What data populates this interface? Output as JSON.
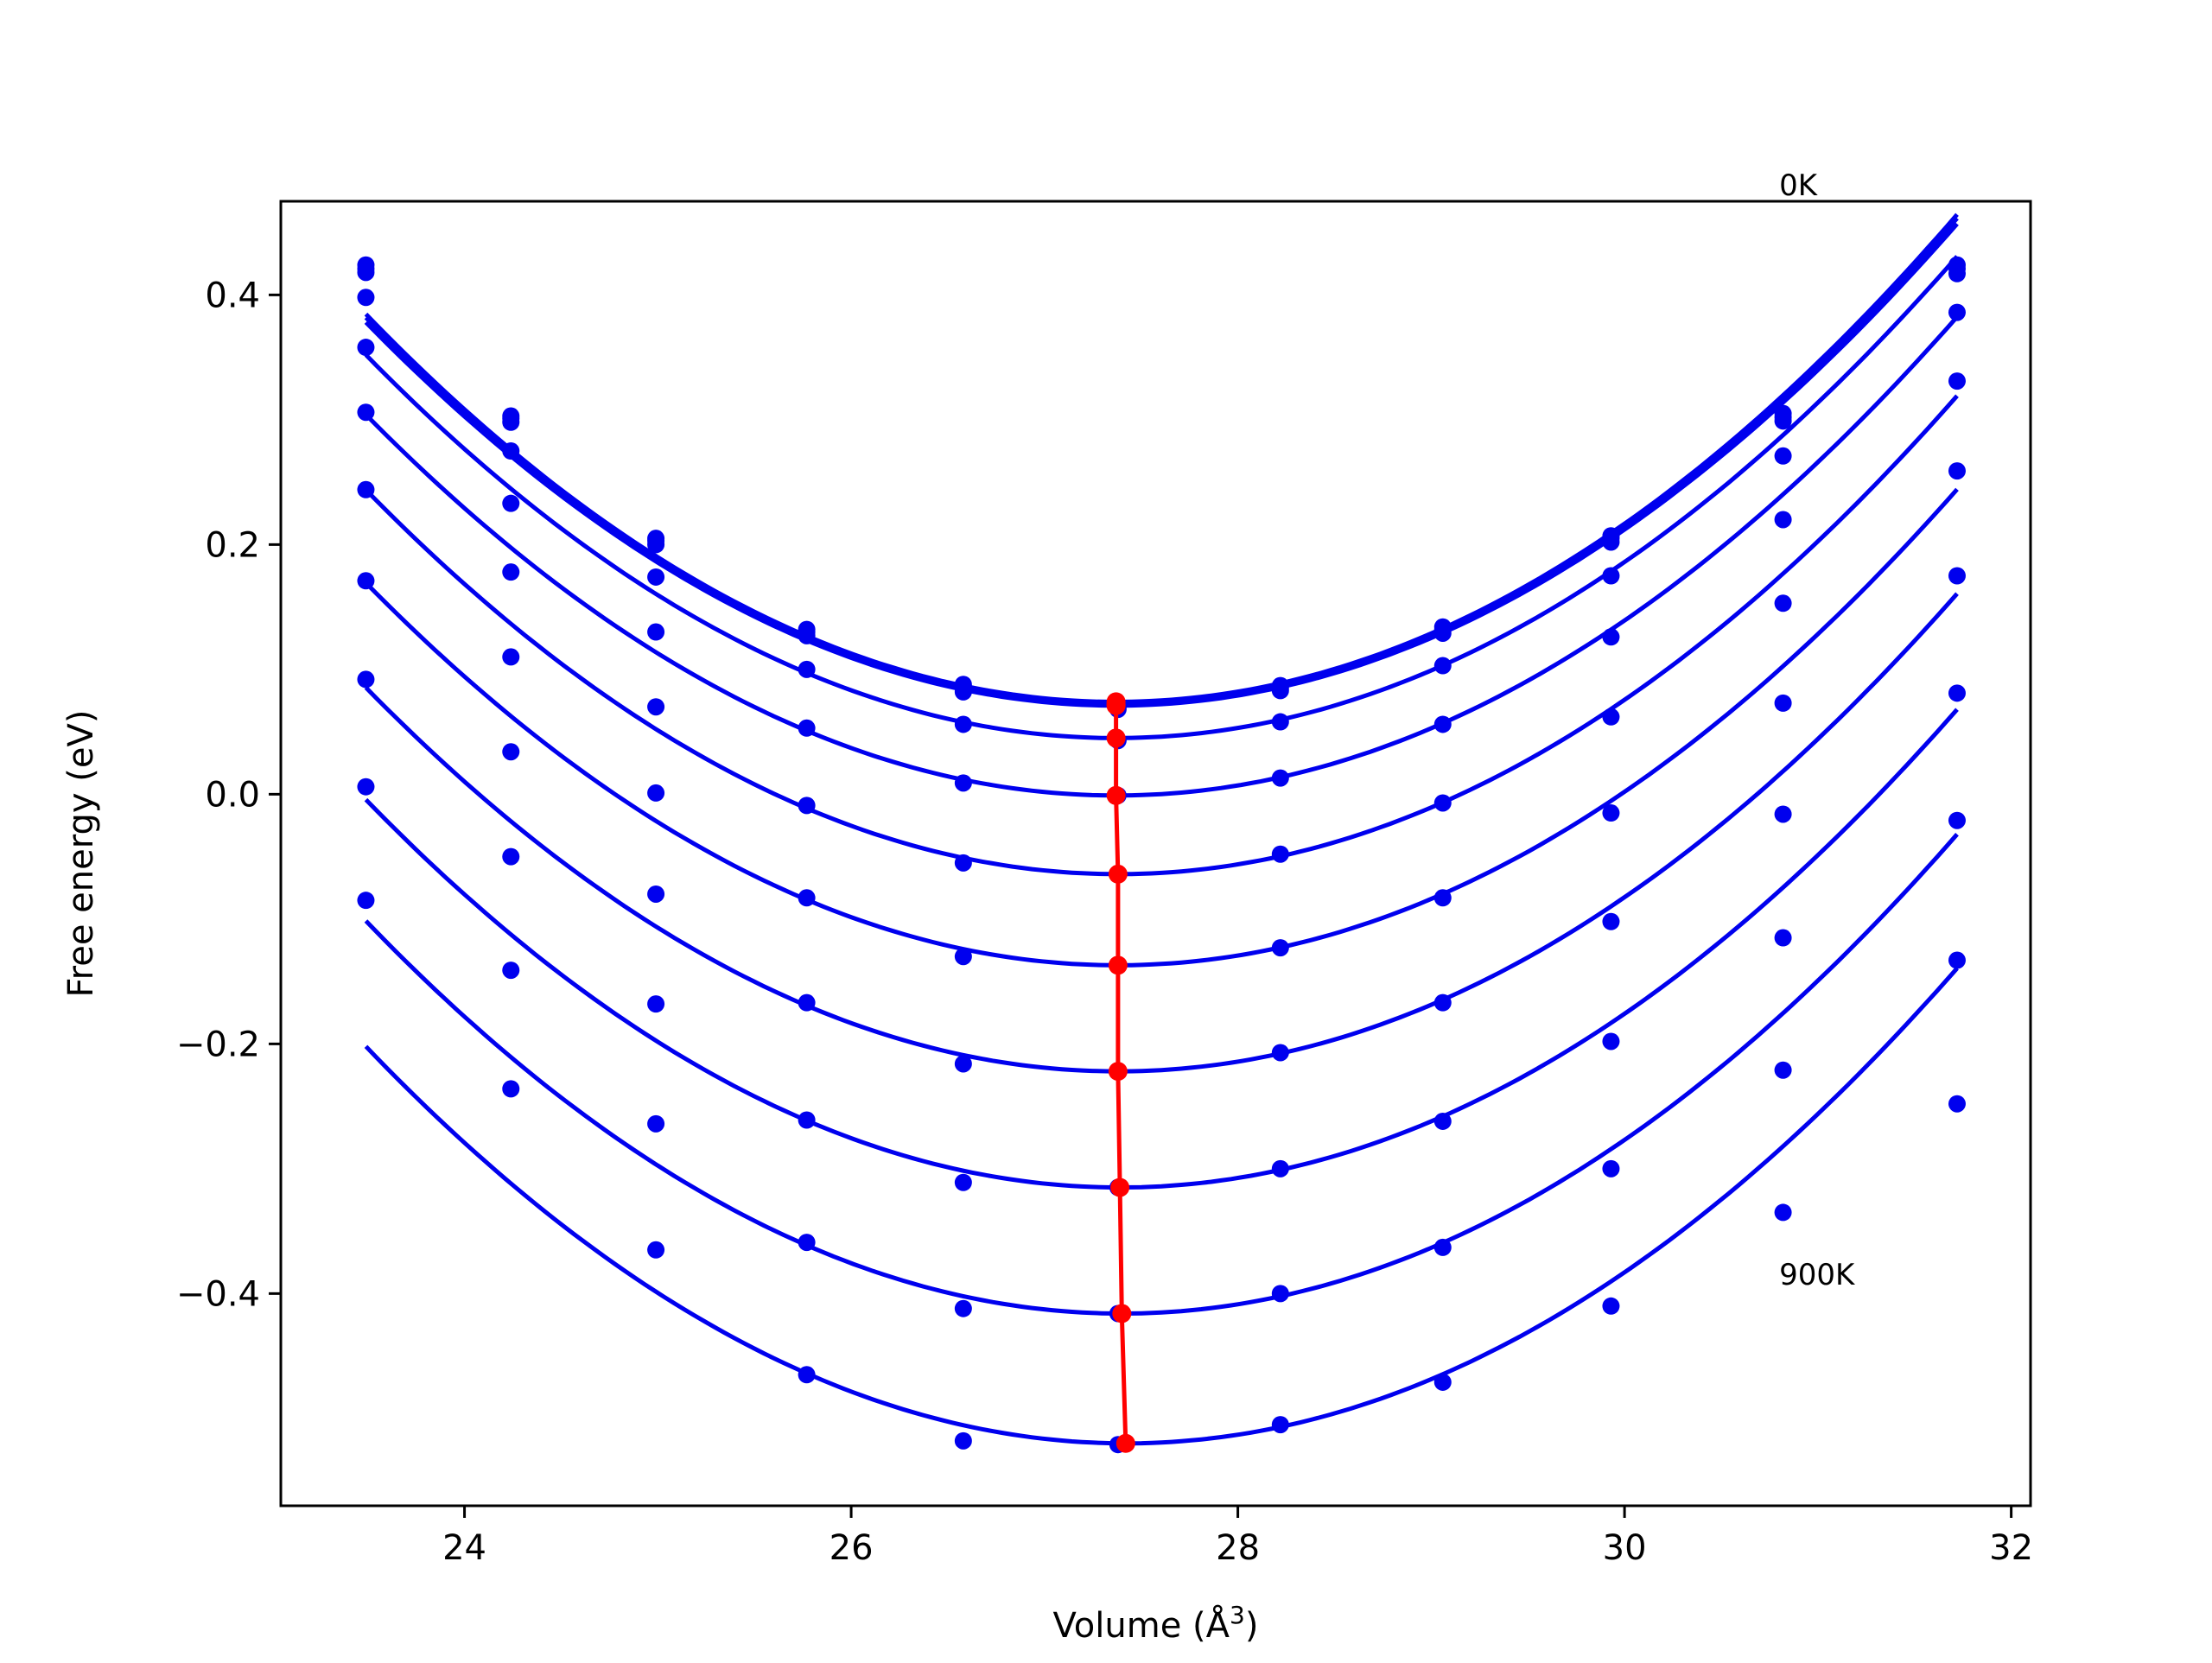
{
  "chart_data": {
    "type": "line",
    "title": "",
    "xlabel": "Volume (Å",
    "xlabel_sup": "3",
    "xlabel_close": ")",
    "ylabel": "Free energy (eV)",
    "xlim": [
      23.05,
      32.1
    ],
    "ylim": [
      -0.57,
      0.475
    ],
    "xticks": [
      24,
      26,
      28,
      30,
      32
    ],
    "xtick_labels": [
      "24",
      "26",
      "28",
      "30",
      "32"
    ],
    "yticks": [
      0.4,
      0.2,
      0.0,
      -0.2,
      -0.4
    ],
    "ytick_labels": [
      "0.4",
      "0.2",
      "0.0",
      "−0.2",
      "−0.4"
    ],
    "grid": false,
    "legend": "none",
    "annotations": [
      {
        "text": "0K",
        "x": 30.8,
        "y": 0.48
      },
      {
        "text": "900K",
        "x": 30.8,
        "y": -0.393
      }
    ],
    "volumes": [
      23.49,
      24.24,
      24.99,
      25.77,
      26.58,
      27.38,
      28.22,
      29.06,
      29.93,
      30.82,
      31.72
    ],
    "series": [
      {
        "min_volume": 27.37,
        "min_energy": 0.074,
        "points": [
          0.424,
          0.303,
          0.205,
          0.132,
          0.088,
          0.071,
          0.087,
          0.134,
          0.207,
          0.305,
          0.424
        ]
      },
      {
        "min_volume": 27.37,
        "min_energy": 0.072,
        "points": [
          0.421,
          0.301,
          0.203,
          0.13,
          0.086,
          0.07,
          0.085,
          0.132,
          0.205,
          0.302,
          0.421
        ]
      },
      {
        "min_volume": 27.37,
        "min_energy": 0.071,
        "points": [
          0.418,
          0.298,
          0.2,
          0.127,
          0.082,
          0.068,
          0.083,
          0.129,
          0.202,
          0.299,
          0.417
        ]
      },
      {
        "min_volume": 27.37,
        "min_energy": 0.045,
        "points": [
          0.398,
          0.275,
          0.174,
          0.1,
          0.056,
          0.043,
          0.058,
          0.103,
          0.175,
          0.271,
          0.386
        ]
      },
      {
        "min_volume": 27.37,
        "min_energy": -0.001,
        "points": [
          0.358,
          0.233,
          0.13,
          0.053,
          0.009,
          -0.001,
          0.013,
          0.056,
          0.126,
          0.22,
          0.331
        ]
      },
      {
        "min_volume": 27.38,
        "min_energy": -0.064,
        "points": [
          0.306,
          0.178,
          0.07,
          -0.009,
          -0.055,
          -0.064,
          -0.048,
          -0.007,
          0.062,
          0.153,
          0.259
        ]
      },
      {
        "min_volume": 27.38,
        "min_energy": -0.137,
        "points": [
          0.244,
          0.11,
          0.001,
          -0.083,
          -0.13,
          -0.137,
          -0.123,
          -0.083,
          -0.015,
          0.073,
          0.175
        ]
      },
      {
        "min_volume": 27.38,
        "min_energy": -0.222,
        "points": [
          0.171,
          0.034,
          -0.08,
          -0.167,
          -0.216,
          -0.222,
          -0.207,
          -0.167,
          -0.102,
          -0.016,
          0.081
        ]
      },
      {
        "min_volume": 27.39,
        "min_energy": -0.315,
        "points": [
          0.092,
          -0.05,
          -0.168,
          -0.261,
          -0.311,
          -0.315,
          -0.3,
          -0.262,
          -0.198,
          -0.115,
          -0.021
        ]
      },
      {
        "min_volume": 27.4,
        "min_energy": -0.416,
        "points": [
          0.006,
          -0.141,
          -0.264,
          -0.359,
          -0.412,
          -0.416,
          -0.4,
          -0.363,
          -0.3,
          -0.221,
          -0.133
        ]
      },
      {
        "min_volume": 27.42,
        "min_energy": -0.52,
        "points": [
          -0.085,
          -0.236,
          -0.365,
          -0.465,
          -0.518,
          -0.521,
          -0.505,
          -0.471,
          -0.41,
          -0.335,
          -0.248
        ]
      }
    ],
    "minima_line": {
      "x": [
        27.37,
        27.37,
        27.37,
        27.37,
        27.37,
        27.38,
        27.38,
        27.38,
        27.39,
        27.4,
        27.42
      ],
      "y": [
        0.074,
        0.072,
        0.071,
        0.045,
        -0.001,
        -0.064,
        -0.137,
        -0.222,
        -0.315,
        -0.416,
        -0.52
      ]
    },
    "colors": {
      "series": "#0000ee",
      "minima": "#ff0000",
      "axes": "#000000"
    }
  }
}
